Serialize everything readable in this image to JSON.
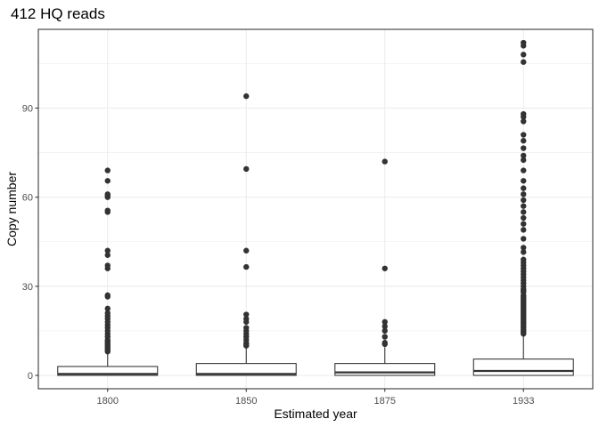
{
  "chart_data": {
    "type": "boxplot",
    "title": "412 HQ reads",
    "xlabel": "Estimated year",
    "ylabel": "Copy number",
    "ylim": [
      -4.5,
      116.5
    ],
    "yticks": [
      0,
      30,
      60,
      90
    ],
    "grid": true,
    "legend": "none",
    "colors": {
      "grid": "#ebebeb",
      "panel_border": "#333333",
      "box_stroke": "#333333",
      "box_fill": "#ffffff",
      "point": "#333333"
    },
    "categories": [
      "1800",
      "1850",
      "1875",
      "1933"
    ],
    "boxes": [
      {
        "category": "1800",
        "min": 0,
        "q1": 0,
        "median": 0.5,
        "q3": 3,
        "whisker_high": 7.5,
        "outliers": [
          8,
          8.5,
          9,
          9.5,
          10,
          10.5,
          11,
          11.5,
          12,
          13,
          14,
          15,
          16,
          17,
          18,
          19,
          20,
          21,
          22.5,
          26.5,
          27,
          36,
          37,
          40.5,
          42,
          55,
          55.5,
          60,
          60.5,
          61,
          65.5,
          69
        ]
      },
      {
        "category": "1850",
        "min": 0,
        "q1": 0,
        "median": 0.5,
        "q3": 4,
        "whisker_high": 9.5,
        "outliers": [
          10,
          10.5,
          11,
          12,
          13,
          14,
          15,
          16,
          18,
          19,
          20.5,
          36.5,
          42,
          69.5,
          94
        ]
      },
      {
        "category": "1875",
        "min": 0,
        "q1": 0,
        "median": 1,
        "q3": 4,
        "whisker_high": 9.5,
        "outliers": [
          10.5,
          11,
          13,
          15,
          16.5,
          18,
          36,
          72
        ]
      },
      {
        "category": "1933",
        "min": 0,
        "q1": 0,
        "median": 1.5,
        "q3": 5.5,
        "whisker_high": 13.5,
        "outliers": [
          14,
          14.5,
          15,
          15.5,
          16,
          16.5,
          17,
          17.5,
          18,
          18.5,
          19,
          19.5,
          20,
          20.5,
          21,
          21.5,
          22,
          22.5,
          23,
          23.5,
          24,
          24.5,
          25,
          25.5,
          26,
          26.5,
          27,
          28,
          28.5,
          29,
          30,
          31,
          32,
          33,
          34,
          35,
          36,
          37,
          38,
          39,
          41.5,
          43,
          46,
          49,
          51,
          53,
          55,
          57,
          59,
          61,
          63,
          65.5,
          69,
          72.5,
          74,
          76.5,
          79,
          81,
          85.5,
          87,
          88,
          105.5,
          108,
          111,
          112
        ]
      }
    ]
  }
}
